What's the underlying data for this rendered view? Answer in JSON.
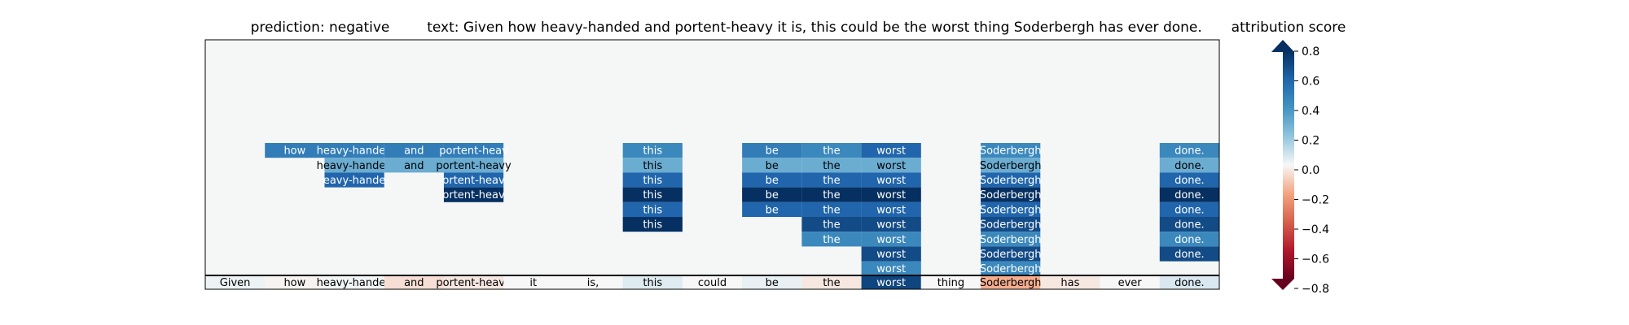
{
  "chart_data": {
    "type": "heatmap",
    "title_prediction": "prediction:  negative",
    "title_text": "text:  Given how heavy-handed and portent-heavy it is, this could be the worst thing Soderbergh has ever done.",
    "colorbar_title": "attribution score",
    "colorbar_ticks": [
      "0.8",
      "0.6",
      "0.4",
      "0.2",
      "0.0",
      "−0.2",
      "−0.4",
      "−0.6",
      "−0.8"
    ],
    "colorbar_range": [
      -0.8,
      0.8
    ],
    "colormap": "RdBu",
    "colors": {
      "background": "#f5f7f7",
      "frame": "#000000"
    },
    "tokens": [
      "Given",
      "how",
      "heavy-handed",
      "and",
      "portent-heavy",
      "it",
      "is,",
      "this",
      "could",
      "be",
      "the",
      "worst",
      "thing",
      "Soderbergh",
      "has",
      "ever",
      "done."
    ],
    "base_scores": [
      0.02,
      -0.01,
      0.01,
      -0.06,
      -0.04,
      0.0,
      0.0,
      0.05,
      0.0,
      0.03,
      -0.04,
      0.72,
      0.0,
      -0.18,
      -0.04,
      0.0,
      0.06
    ],
    "rows": [
      [
        null,
        0.5,
        0.5,
        0.5,
        0.5,
        null,
        null,
        0.45,
        null,
        0.5,
        0.45,
        0.6,
        null,
        0.45,
        null,
        null,
        0.45
      ],
      [
        null,
        null,
        "heavy-handed",
        "and",
        "portent-heavy",
        null,
        null,
        0.3,
        null,
        0.3,
        0.3,
        0.3,
        null,
        "Soderbergh",
        null,
        null,
        "done."
      ],
      [
        null,
        null,
        0.6,
        null,
        0.6,
        null,
        null,
        0.6,
        null,
        0.6,
        0.6,
        0.6,
        null,
        0.6,
        null,
        null,
        0.6
      ],
      [
        null,
        null,
        null,
        null,
        0.9,
        null,
        null,
        0.9,
        null,
        0.9,
        0.9,
        0.9,
        null,
        0.9,
        null,
        null,
        0.9
      ],
      [
        null,
        null,
        null,
        null,
        null,
        null,
        null,
        0.6,
        null,
        0.6,
        0.6,
        0.6,
        null,
        0.6,
        null,
        null,
        0.6
      ],
      [
        null,
        null,
        null,
        null,
        null,
        null,
        null,
        0.8,
        null,
        null,
        0.7,
        0.7,
        null,
        0.7,
        null,
        null,
        0.7
      ],
      [
        null,
        null,
        null,
        null,
        null,
        null,
        null,
        null,
        null,
        null,
        0.45,
        0.45,
        null,
        0.45,
        null,
        null,
        0.45
      ],
      [
        null,
        null,
        null,
        null,
        null,
        null,
        null,
        null,
        null,
        null,
        null,
        0.7,
        null,
        0.7,
        null,
        null,
        0.7
      ],
      [
        null,
        null,
        null,
        null,
        null,
        null,
        null,
        null,
        null,
        null,
        null,
        0.45,
        null,
        0.45,
        null,
        null,
        null
      ]
    ],
    "row_labels": [
      [
        null,
        "how",
        "heavy-handed",
        "and",
        "portent-heav",
        null,
        null,
        "this",
        null,
        "be",
        "the",
        "worst",
        null,
        "Soderbergh",
        null,
        null,
        "done."
      ],
      [
        null,
        null,
        "heavy-handed",
        "and",
        "portent-heavy",
        null,
        null,
        "this",
        null,
        "be",
        "the",
        "worst",
        null,
        "Soderbergh",
        null,
        null,
        "done."
      ],
      [
        null,
        null,
        "eavy-hande",
        null,
        "ortent-heav",
        null,
        null,
        "this",
        null,
        "be",
        "the",
        "worst",
        null,
        "Soderbergh",
        null,
        null,
        "done."
      ],
      [
        null,
        null,
        null,
        null,
        "ortent-heav",
        null,
        null,
        "this",
        null,
        "be",
        "the",
        "worst",
        null,
        "Soderbergh",
        null,
        null,
        "done."
      ],
      [
        null,
        null,
        null,
        null,
        null,
        null,
        null,
        "this",
        null,
        "be",
        "the",
        "worst",
        null,
        "Soderbergh",
        null,
        null,
        "done."
      ],
      [
        null,
        null,
        null,
        null,
        null,
        null,
        null,
        "this",
        null,
        null,
        "the",
        "worst",
        null,
        "Soderbergh",
        null,
        null,
        "done."
      ],
      [
        null,
        null,
        null,
        null,
        null,
        null,
        null,
        null,
        null,
        null,
        "the",
        "worst",
        null,
        "Soderbergh",
        null,
        null,
        "done."
      ],
      [
        null,
        null,
        null,
        null,
        null,
        null,
        null,
        null,
        null,
        null,
        null,
        "worst",
        null,
        "Soderbergh",
        null,
        null,
        "done."
      ],
      [
        null,
        null,
        null,
        null,
        null,
        null,
        null,
        null,
        null,
        null,
        null,
        "worst",
        null,
        "Soderbergh",
        null,
        null,
        null
      ]
    ],
    "row_values": [
      [
        null,
        0.5,
        0.5,
        0.5,
        0.5,
        null,
        null,
        0.45,
        null,
        0.5,
        0.45,
        0.6,
        null,
        0.45,
        null,
        null,
        0.45
      ],
      [
        null,
        null,
        0.3,
        0.3,
        0.3,
        null,
        null,
        0.3,
        null,
        0.3,
        0.3,
        0.3,
        null,
        0.3,
        null,
        null,
        0.3
      ],
      [
        null,
        null,
        0.6,
        null,
        0.6,
        null,
        null,
        0.6,
        null,
        0.6,
        0.6,
        0.6,
        null,
        0.6,
        null,
        null,
        0.6
      ],
      [
        null,
        null,
        null,
        null,
        0.9,
        null,
        null,
        0.9,
        null,
        0.9,
        0.9,
        0.9,
        null,
        0.9,
        null,
        null,
        0.9
      ],
      [
        null,
        null,
        null,
        null,
        null,
        null,
        null,
        0.6,
        null,
        0.6,
        0.6,
        0.6,
        null,
        0.6,
        null,
        null,
        0.6
      ],
      [
        null,
        null,
        null,
        null,
        null,
        null,
        null,
        0.8,
        null,
        null,
        0.7,
        0.7,
        null,
        0.7,
        null,
        null,
        0.7
      ],
      [
        null,
        null,
        null,
        null,
        null,
        null,
        null,
        null,
        null,
        null,
        0.45,
        0.45,
        null,
        0.45,
        null,
        null,
        0.45
      ],
      [
        null,
        null,
        null,
        null,
        null,
        null,
        null,
        null,
        null,
        null,
        null,
        0.7,
        null,
        0.7,
        null,
        null,
        0.7
      ],
      [
        null,
        null,
        null,
        null,
        null,
        null,
        null,
        null,
        null,
        null,
        null,
        0.45,
        null,
        0.45,
        null,
        null,
        null
      ]
    ]
  }
}
